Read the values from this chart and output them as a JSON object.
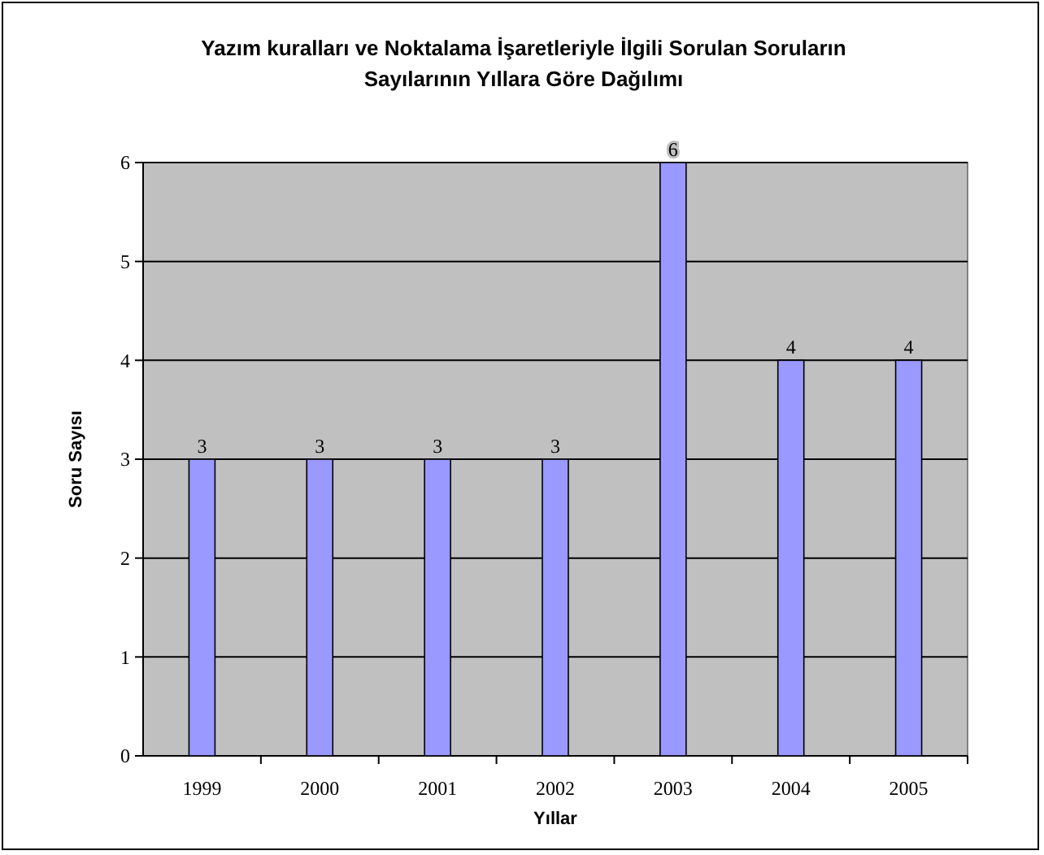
{
  "chart_data": {
    "type": "bar",
    "title": "Yazım kuralları ve Noktalama İşaretleriyle İlgili Sorulan Soruların Sayılarının Yıllara Göre Dağılımı",
    "xlabel": "Yıllar",
    "ylabel": "Soru Sayısı",
    "categories": [
      "1999",
      "2000",
      "2001",
      "2002",
      "2003",
      "2004",
      "2005"
    ],
    "values": [
      3,
      3,
      3,
      3,
      6,
      4,
      4
    ],
    "color": "#9999ff",
    "ylim": [
      0,
      6
    ],
    "yticks": [
      0,
      1,
      2,
      3,
      4,
      5,
      6
    ],
    "grid": "y",
    "data_labels": true
  }
}
